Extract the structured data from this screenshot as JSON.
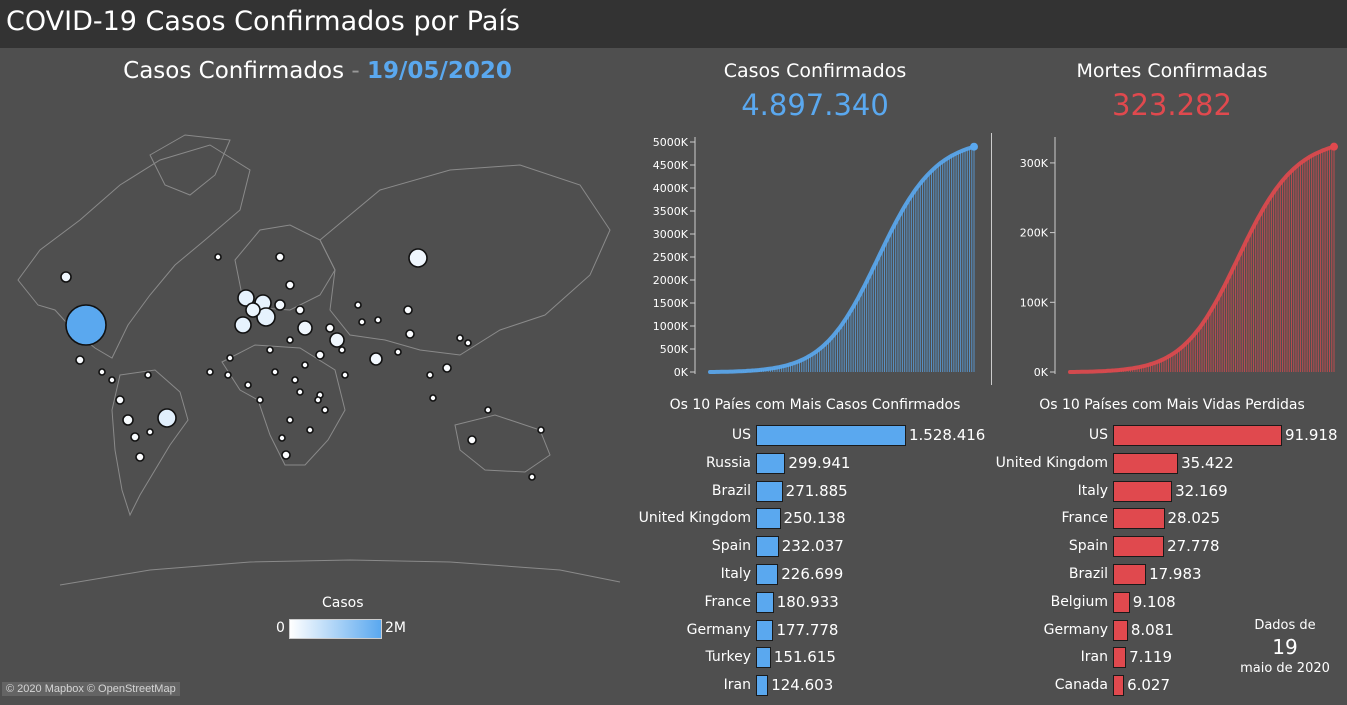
{
  "header": {
    "title": "COVID-19 Casos Confirmados por País"
  },
  "map": {
    "title": "Casos Confirmados",
    "separator": "-",
    "date": "19/05/2020",
    "legend_title": "Casos",
    "legend_min": "0",
    "legend_max": "2M",
    "attribution": "© 2020 Mapbox © OpenStreetMap"
  },
  "kpi": {
    "cases_label": "Casos Confirmados",
    "cases_value": "4.897.340",
    "deaths_label": "Mortes Confirmadas",
    "deaths_value": "323.282"
  },
  "colors": {
    "cases": "#5aa8ef",
    "deaths": "#e0494e",
    "background": "#4f4f4f",
    "header": "#333333"
  },
  "sections": {
    "top_cases_title": "Os 10 Paíes com Mais Casos Confirmados",
    "top_deaths_title": "Os 10 Países com Mais Vidas Perdidas"
  },
  "footer": {
    "line1": "Dados de",
    "day": "19",
    "line3": "maio de 2020"
  },
  "chart_data": [
    {
      "type": "area",
      "name": "cumulative_cases",
      "x_range": [
        "2020-01-22",
        "2020-05-19"
      ],
      "y_ticks": [
        "0K",
        "500K",
        "1000K",
        "1500K",
        "2000K",
        "2500K",
        "3000K",
        "3500K",
        "4000K",
        "4500K",
        "5000K"
      ],
      "ylim": [
        0,
        5000000
      ],
      "final_value": 4897340
    },
    {
      "type": "area",
      "name": "cumulative_deaths",
      "x_range": [
        "2020-01-22",
        "2020-05-19"
      ],
      "y_ticks": [
        "0K",
        "100K",
        "200K",
        "300K"
      ],
      "ylim": [
        0,
        330000
      ],
      "final_value": 323282
    },
    {
      "type": "bar",
      "name": "top10_cases",
      "categories": [
        "US",
        "Russia",
        "Brazil",
        "United Kingdom",
        "Spain",
        "Italy",
        "France",
        "Germany",
        "Turkey",
        "Iran"
      ],
      "values": [
        1528416,
        299941,
        271885,
        250138,
        232037,
        226699,
        180933,
        177778,
        151615,
        124603
      ],
      "labels": [
        "1.528.416",
        "299.941",
        "271.885",
        "250.138",
        "232.037",
        "226.699",
        "180.933",
        "177.778",
        "151.615",
        "124.603"
      ]
    },
    {
      "type": "bar",
      "name": "top10_deaths",
      "categories": [
        "US",
        "United Kingdom",
        "Italy",
        "France",
        "Spain",
        "Brazil",
        "Belgium",
        "Germany",
        "Iran",
        "Canada"
      ],
      "values": [
        91918,
        35422,
        32169,
        28025,
        27778,
        17983,
        9108,
        8081,
        7119,
        6027
      ],
      "labels": [
        "91.918",
        "35.422",
        "32.169",
        "28.025",
        "27.778",
        "17.983",
        "9.108",
        "8.081",
        "7.119",
        "6.027"
      ]
    }
  ]
}
